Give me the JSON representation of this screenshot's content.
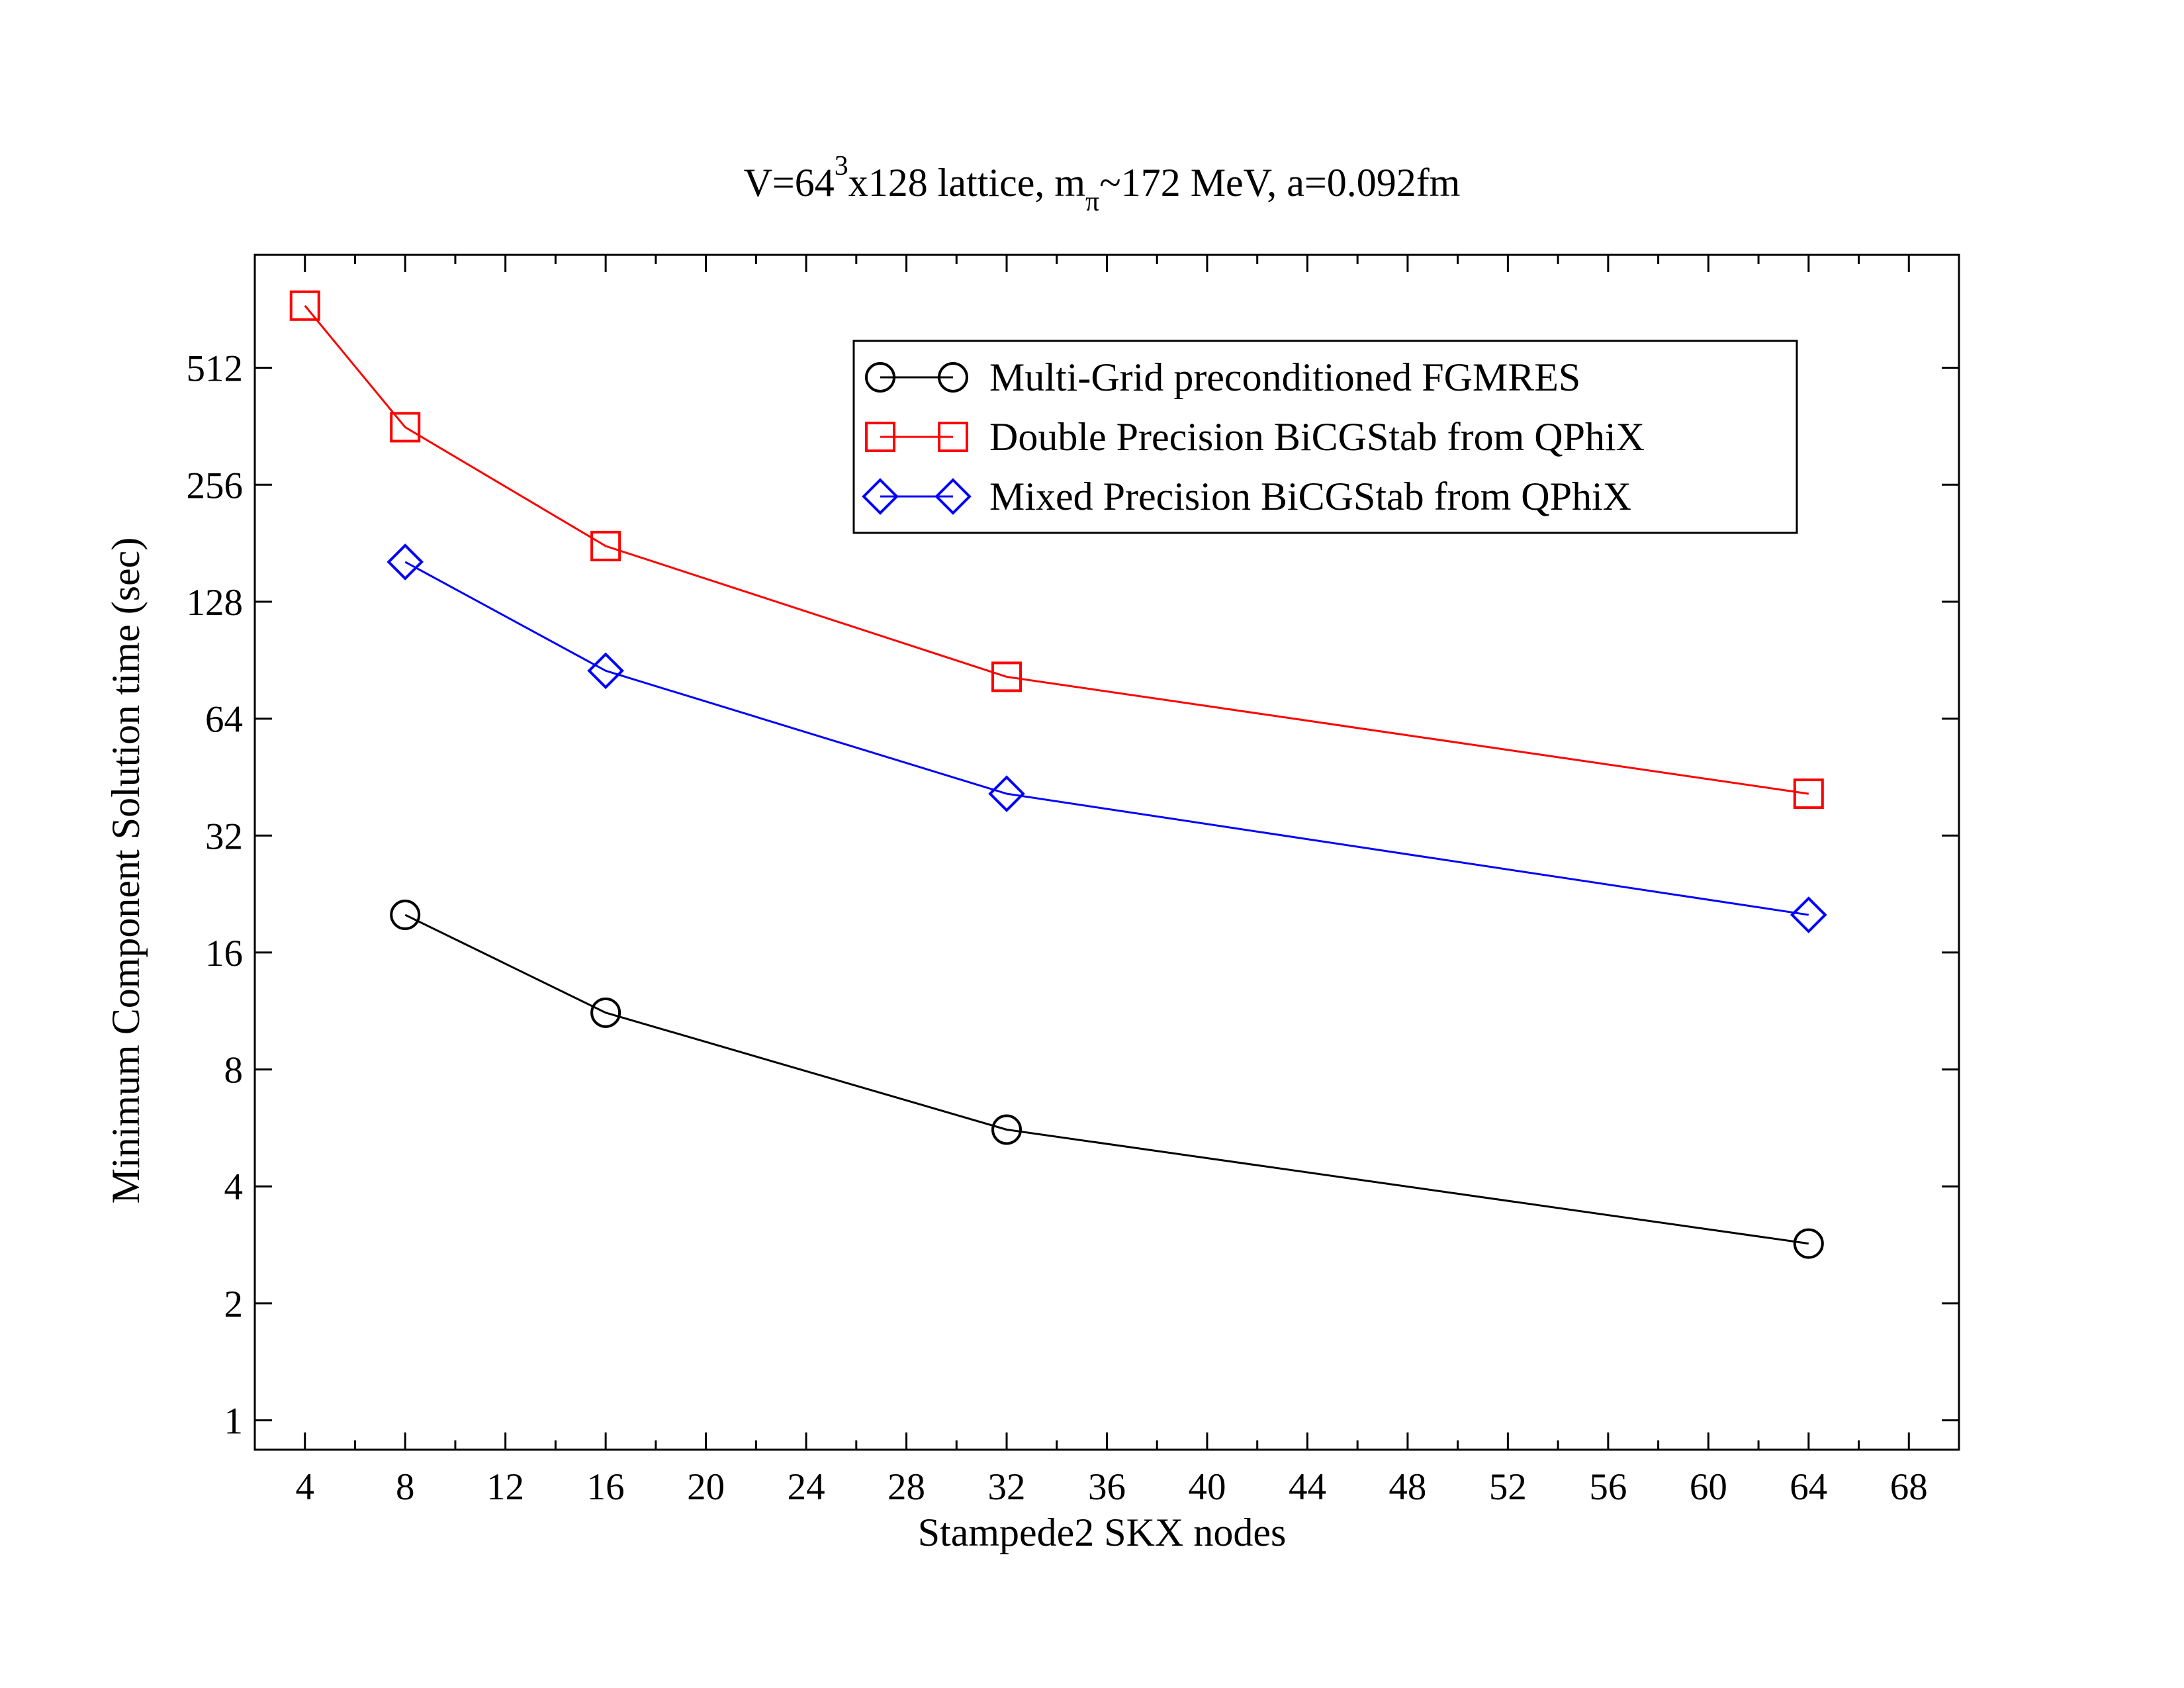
{
  "chart_data": {
    "type": "line",
    "title": {
      "text": "V=64",
      "sup": "3",
      "after_sup": "x128 lattice, m",
      "sub": "π",
      "after_sub": "~172 MeV, a=0.092fm"
    },
    "xlabel": "Stampede2 SKX nodes",
    "ylabel": "Minimum Component Solution time  (sec)",
    "x_scale": "linear",
    "y_scale": "log2",
    "xlim": [
      2,
      70
    ],
    "ylim": [
      0.84,
      1000
    ],
    "x_ticks": [
      "4",
      "8",
      "12",
      "16",
      "20",
      "24",
      "28",
      "32",
      "36",
      "40",
      "44",
      "48",
      "52",
      "56",
      "60",
      "64",
      "68"
    ],
    "y_ticks": [
      "1",
      "2",
      "4",
      "8",
      "16",
      "32",
      "64",
      "128",
      "256",
      "512"
    ],
    "grid": false,
    "legend_position": "top-right",
    "series": [
      {
        "name": "Multi-Grid preconditioned FGMRES",
        "color": "#000000",
        "marker": "circle",
        "x": [
          8,
          16,
          32,
          64
        ],
        "y": [
          20,
          11.2,
          5.6,
          2.85
        ]
      },
      {
        "name": "Double Precision BiCGStab from QPhiX",
        "color": "#ff0000",
        "marker": "square",
        "x": [
          4,
          8,
          16,
          32,
          64
        ],
        "y": [
          740,
          360,
          178,
          82,
          41
        ]
      },
      {
        "name": "Mixed Precision BiCGStab from QPhiX",
        "color": "#0000ff",
        "marker": "diamond",
        "x": [
          8,
          16,
          32,
          64
        ],
        "y": [
          162,
          85,
          41,
          20
        ]
      }
    ]
  }
}
